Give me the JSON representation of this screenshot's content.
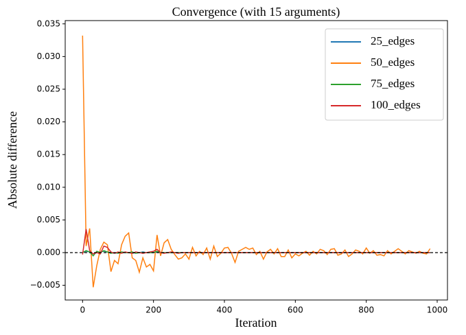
{
  "chart_data": {
    "type": "line",
    "title": "Convergence (with 15 arguments)",
    "x_label": "Iteration",
    "y_label": "Absolute difference",
    "x": [
      0,
      10,
      20,
      30,
      40,
      50,
      60,
      70,
      80,
      90,
      100,
      110,
      120,
      130,
      140,
      150,
      160,
      170,
      180,
      190,
      200,
      210,
      220,
      230,
      240,
      250,
      260,
      270,
      280,
      290,
      300,
      310,
      320,
      330,
      340,
      350,
      360,
      370,
      380,
      390,
      400,
      410,
      420,
      430,
      440,
      450,
      460,
      470,
      480,
      490,
      500,
      510,
      520,
      530,
      540,
      550,
      560,
      570,
      580,
      590,
      600,
      610,
      620,
      630,
      640,
      650,
      660,
      670,
      680,
      690,
      700,
      710,
      720,
      730,
      740,
      750,
      760,
      770,
      780,
      790,
      800,
      810,
      820,
      830,
      840,
      850,
      860,
      870,
      880,
      890,
      900,
      910,
      920,
      930,
      940,
      950,
      960,
      970,
      980
    ],
    "series": [
      {
        "name": "25_edges",
        "color": "#1f77b4",
        "values": [
          0,
          0.0002,
          0.0001,
          -0.0002,
          0,
          0.0001,
          0.0002,
          0.0001,
          0,
          -0.0001,
          0,
          0.0001,
          0,
          0,
          -0.0001,
          0,
          0,
          0.0001,
          0,
          0,
          0,
          0.0001,
          0,
          0,
          0,
          0,
          0,
          0,
          0,
          0,
          0,
          0,
          0,
          0,
          0,
          0,
          0,
          0,
          0,
          0,
          0,
          0,
          0,
          0,
          0,
          0,
          0,
          0,
          0,
          0,
          0,
          0,
          0,
          0,
          0,
          0,
          0,
          0,
          0,
          0,
          0,
          0,
          0,
          0,
          0,
          0,
          0,
          0,
          0,
          0,
          0,
          0,
          0,
          0,
          0,
          0,
          0,
          0,
          0,
          0,
          0,
          0,
          0,
          0,
          0,
          0,
          0,
          0,
          0,
          0,
          0,
          0,
          0,
          0,
          0,
          0,
          0,
          0,
          0
        ]
      },
      {
        "name": "50_edges",
        "color": "#ff7f0e",
        "values": [
          0.0332,
          0.001,
          0.0037,
          -0.0053,
          -0.002,
          0.0005,
          0.0016,
          0.0012,
          -0.0029,
          -0.0012,
          -0.0017,
          0.0012,
          0.0025,
          0.003,
          -0.0008,
          -0.0012,
          -0.003,
          -0.0008,
          -0.0022,
          -0.0018,
          -0.0028,
          0.0027,
          -0.0005,
          0.0015,
          0.002,
          0.0005,
          -0.0003,
          -0.001,
          -0.0008,
          -0.0002,
          -0.001,
          0.0008,
          -0.0005,
          0.0002,
          -0.0003,
          0.0007,
          -0.001,
          0.001,
          -0.0006,
          -0.0001,
          0.0007,
          0.0008,
          -0.0001,
          -0.0015,
          0.0002,
          0.0005,
          0.0008,
          0.0005,
          0.0007,
          -0.0003,
          0.0002,
          -0.001,
          0.0001,
          0.0005,
          -0.0002,
          0.0006,
          -0.0006,
          -0.0006,
          0.0004,
          -0.0008,
          -0.0002,
          -0.0005,
          -0.0001,
          0.0002,
          -0.0004,
          0.0002,
          -0.0002,
          0.0005,
          0.0003,
          -0.0003,
          0.0005,
          0.0006,
          -0.0004,
          -0.0002,
          0.0004,
          -0.0006,
          -0.0002,
          0.0004,
          0.0002,
          -0.0002,
          0.0007,
          -0.0001,
          0.0003,
          -0.0004,
          -0.0003,
          -0.0005,
          0.0003,
          -0.0002,
          0.0002,
          0.0006,
          0.0002,
          -0.0002,
          0.0003,
          0.0001,
          -0.0001,
          0.0002,
          -0.0001,
          -0.0002,
          0.0006
        ]
      },
      {
        "name": "75_edges",
        "color": "#2ca02c",
        "values": [
          0,
          0.0003,
          0.0001,
          -0.0005,
          0.0002,
          0,
          0.0003,
          0.0001,
          -0.0001,
          0,
          -0.0001,
          0.0001,
          0,
          0,
          0.0001,
          -0.0001,
          0,
          0,
          0,
          0,
          0,
          0.0002,
          0,
          0,
          0,
          0,
          0,
          0,
          0,
          0,
          0,
          0,
          0,
          0,
          0,
          0,
          0,
          0,
          0,
          0,
          0,
          0,
          0,
          0,
          0,
          0,
          0,
          0,
          0,
          0,
          0,
          0,
          0,
          0,
          0,
          0,
          0,
          0,
          0,
          0,
          0,
          0,
          0,
          0,
          0,
          0,
          0,
          0,
          0,
          0,
          0,
          0,
          0,
          0,
          0,
          0,
          0,
          0,
          0,
          0,
          0,
          0,
          0,
          0,
          0,
          0,
          0,
          0,
          0,
          0,
          0,
          0,
          0,
          0,
          0,
          0,
          0,
          0,
          0
        ]
      },
      {
        "name": "100_edges",
        "color": "#d62728",
        "values": [
          -0.0003,
          0.0036,
          0.0003,
          -0.0002,
          0,
          -0.0002,
          0.001,
          0.0008,
          0.0001,
          -0.0001,
          0.0001,
          -0.0001,
          0.0001,
          0,
          -0.0001,
          0.0001,
          0,
          -0.0001,
          0,
          0.0001,
          0.0002,
          0.0005,
          0,
          -0.0001,
          0,
          0.0001,
          0,
          -0.0001,
          0,
          0,
          0,
          0,
          0,
          0,
          0,
          0,
          0,
          0,
          0,
          0,
          0,
          0,
          0,
          0,
          0,
          0,
          0,
          0,
          0,
          0,
          0,
          0,
          0,
          0,
          0,
          0,
          0,
          0,
          0,
          0,
          0,
          0,
          0,
          0,
          0,
          0,
          0,
          0,
          0,
          0,
          0,
          0,
          0,
          0,
          0,
          0,
          0,
          0,
          0,
          0,
          0,
          0,
          0,
          0,
          0,
          0,
          0,
          0,
          0,
          0,
          0,
          0,
          0,
          0,
          0,
          0,
          0,
          0,
          0
        ]
      }
    ],
    "xlim": [
      -49,
      1029
    ],
    "ylim": [
      -0.00725,
      0.0355
    ],
    "xticks": [
      0,
      200,
      400,
      600,
      800,
      1000
    ],
    "yticks": [
      {
        "value": -0.005,
        "label": "−0.005"
      },
      {
        "value": 0,
        "label": "0.000"
      },
      {
        "value": 0.005,
        "label": "0.005"
      },
      {
        "value": 0.01,
        "label": "0.010"
      },
      {
        "value": 0.015,
        "label": "0.015"
      },
      {
        "value": 0.02,
        "label": "0.020"
      },
      {
        "value": 0.025,
        "label": "0.025"
      },
      {
        "value": 0.03,
        "label": "0.030"
      },
      {
        "value": 0.035,
        "label": "0.035"
      }
    ],
    "hline": {
      "y": 0,
      "color": "#000000",
      "dashed": true
    },
    "legend": "upper right",
    "grid": false
  }
}
